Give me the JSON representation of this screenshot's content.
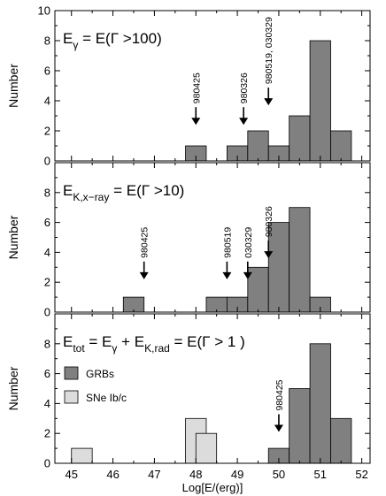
{
  "chart_data": {
    "type": "bar",
    "xlabel": "Log[E/(erg)]",
    "ylabel": "Number",
    "xlim": [
      44.6,
      52.2
    ],
    "x_ticks": [
      "45",
      "46",
      "47",
      "48",
      "49",
      "50",
      "51",
      "52"
    ],
    "bin_width": 0.5,
    "colors": {
      "grb": "#808080",
      "sne": "#dcdcdc"
    },
    "panels": [
      {
        "ylim": [
          0,
          10
        ],
        "y_ticks": [
          "0",
          "2",
          "4",
          "6",
          "8",
          "10"
        ],
        "title": {
          "main": "E",
          "sub1": "γ",
          "rest": " = E(Γ >100)",
          "sup2": "",
          "sub2": "",
          "rest2": "",
          "sub3": "",
          "rest3": ""
        },
        "series": [
          {
            "kind": "grb",
            "bins": [
              {
                "x0": 47.75,
                "count": 1
              },
              {
                "x0": 48.75,
                "count": 1
              },
              {
                "x0": 49.25,
                "count": 2
              },
              {
                "x0": 49.75,
                "count": 1
              },
              {
                "x0": 50.25,
                "count": 3
              },
              {
                "x0": 50.75,
                "count": 8
              },
              {
                "x0": 51.25,
                "count": 2
              }
            ]
          }
        ],
        "annotations": [
          {
            "label": "980425",
            "x": 48.0,
            "y": 2.4
          },
          {
            "label": "980326",
            "x": 49.15,
            "y": 2.4
          },
          {
            "label": "980519, 030329",
            "x": 49.75,
            "y": 3.7
          }
        ]
      },
      {
        "ylim": [
          0,
          10
        ],
        "y_ticks": [
          "0",
          "2",
          "4",
          "6",
          "8"
        ],
        "title": {
          "main": "E",
          "sub1": "K,x−ray",
          "rest": " = E(Γ >10)",
          "sup2": "",
          "sub2": "",
          "rest2": "",
          "sub3": "",
          "rest3": ""
        },
        "series": [
          {
            "kind": "grb",
            "bins": [
              {
                "x0": 46.25,
                "count": 1
              },
              {
                "x0": 48.25,
                "count": 1
              },
              {
                "x0": 48.75,
                "count": 1
              },
              {
                "x0": 49.25,
                "count": 3
              },
              {
                "x0": 49.75,
                "count": 6
              },
              {
                "x0": 50.25,
                "count": 7
              },
              {
                "x0": 50.75,
                "count": 1
              }
            ]
          }
        ],
        "annotations": [
          {
            "label": "980425",
            "x": 46.75,
            "y": 2.2
          },
          {
            "label": "980519",
            "x": 48.75,
            "y": 2.2
          },
          {
            "label": "030329",
            "x": 49.25,
            "y": 2.2
          },
          {
            "label": "980326",
            "x": 49.75,
            "y": 3.6
          }
        ]
      },
      {
        "ylim": [
          0,
          10
        ],
        "y_ticks": [
          "0",
          "2",
          "4",
          "6",
          "8"
        ],
        "title": {
          "main": "E",
          "sub1": "tot",
          "rest": " = E",
          "sub2": "γ",
          "rest2": " + E",
          "sub3": "K,rad",
          "rest3": " = E(Γ > 1 )",
          "sup2": ""
        },
        "legend": [
          {
            "label": "GRBs",
            "kind": "grb"
          },
          {
            "label": "SNe Ib/c",
            "kind": "sne"
          }
        ],
        "series": [
          {
            "kind": "sne",
            "bins": [
              {
                "x0": 45.0,
                "count": 1
              },
              {
                "x0": 47.75,
                "count": 3
              },
              {
                "x0": 48.0,
                "count": 2
              }
            ]
          },
          {
            "kind": "grb",
            "bins": [
              {
                "x0": 49.75,
                "count": 1
              },
              {
                "x0": 50.25,
                "count": 5
              },
              {
                "x0": 50.75,
                "count": 8
              },
              {
                "x0": 51.25,
                "count": 3
              }
            ]
          }
        ],
        "annotations": [
          {
            "label": "980425",
            "x": 50.0,
            "y": 2.1
          }
        ]
      }
    ]
  }
}
